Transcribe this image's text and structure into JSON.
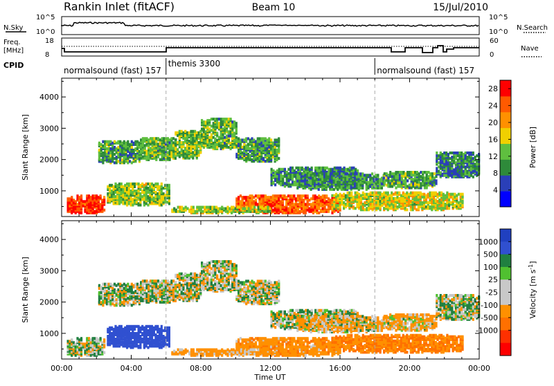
{
  "header": {
    "station": "Rankin Inlet (fitACF)",
    "beam": "Beam 10",
    "date": "15/Jul/2010"
  },
  "top_panels": {
    "nsky_label": "N.Sky",
    "nsky_ticks": [
      "10^5",
      "10^0"
    ],
    "nsearch_label": "N.Search",
    "nsearch_ticks": [
      "10^5",
      "10^0"
    ],
    "freq_label": "Freq.",
    "freq_unit": "[MHz]",
    "freq_ticks": [
      "18",
      "8"
    ],
    "nave_label": "Nave",
    "nave_ticks": [
      "60",
      "0"
    ],
    "cpid_label": "CPID"
  },
  "cpid_segments": [
    {
      "label": "normalsound (fast) 157",
      "start_hour": 0
    },
    {
      "label": "themis 3300",
      "start_hour": 6
    },
    {
      "label": "normalsound (fast) 157",
      "start_hour": 18
    }
  ],
  "colors": {
    "power_scale": [
      "#0000ff",
      "#2a3fb8",
      "#2e8a3a",
      "#5fbf3f",
      "#f0d000",
      "#ff9000",
      "#ff5a00",
      "#ff0000"
    ],
    "velocity_scale": [
      "#2040c0",
      "#3050d0",
      "#208040",
      "#50c030",
      "#c8c8c8",
      "#c8c8c8",
      "#ff9000",
      "#ff7000",
      "#ff3000",
      "#ff0000"
    ]
  },
  "chart_data": [
    {
      "type": "heatmap",
      "name": "power",
      "xlabel": "",
      "ylabel": "Slant Range [km]",
      "xlim": [
        0,
        24
      ],
      "ylim": [
        180,
        4600
      ],
      "yticks": [
        "1000",
        "2000",
        "3000",
        "4000"
      ],
      "colorbar_label": "Power [dB]",
      "colorbar_ticks": [
        "4",
        "8",
        "12",
        "16",
        "20",
        "24",
        "28"
      ],
      "colorbar_range": [
        0,
        30
      ]
    },
    {
      "type": "heatmap",
      "name": "velocity",
      "xlabel": "Time UT",
      "ylabel": "Slant Range [km]",
      "xlim": [
        0,
        24
      ],
      "ylim": [
        180,
        4600
      ],
      "xticks": [
        "00:00",
        "04:00",
        "08:00",
        "12:00",
        "16:00",
        "20:00",
        "00:00"
      ],
      "yticks": [
        "1000",
        "2000",
        "3000",
        "4000"
      ],
      "colorbar_label": "Velocity [m s-1]",
      "colorbar_ticks": [
        "1000",
        "500",
        "100",
        "25",
        "-25",
        "-100",
        "-500",
        "-1000"
      ]
    }
  ]
}
